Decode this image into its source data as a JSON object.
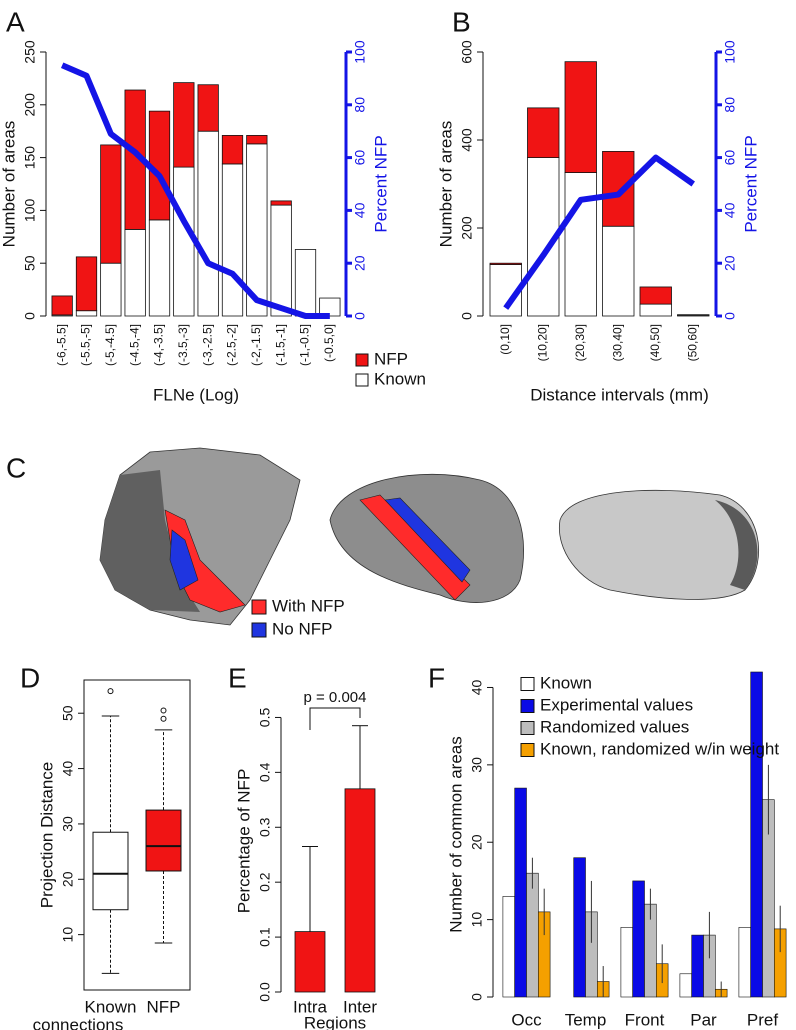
{
  "chart_data": [
    {
      "panel": "A",
      "type": "stack_line",
      "xlabel": "FLNe (Log)",
      "ylabel": "Number of areas",
      "y2label": "Percent NFP",
      "categories": [
        "(-6,-5.5]",
        "(-5.5,-5]",
        "(-5,-4.5]",
        "(-4.5,-4]",
        "(-4,-3.5]",
        "(-3.5,-3]",
        "(-3,-2.5]",
        "(-2.5,-2]",
        "(-2,-1.5]",
        "(-1.5,-1]",
        "(-1,-0.5]",
        "(-0.5,0]"
      ],
      "series": [
        {
          "name": "Known",
          "color": "#ffffff",
          "values": [
            1,
            5,
            50,
            82,
            91,
            141,
            175,
            144,
            163,
            105,
            63,
            17
          ]
        },
        {
          "name": "NFP",
          "color": "#f01414",
          "values": [
            18,
            51,
            112,
            132,
            103,
            80,
            44,
            27,
            8,
            4,
            0,
            0
          ]
        },
        {
          "name": "Percent NFP",
          "color": "#1414e6",
          "axis": "y2",
          "values": [
            95,
            91,
            69,
            62,
            53,
            36,
            20,
            16,
            6,
            3,
            0,
            0
          ]
        }
      ],
      "ylim": [
        0,
        250
      ],
      "yticks": [
        0,
        50,
        100,
        150,
        200,
        250
      ],
      "y2lim": [
        0,
        100
      ],
      "y2ticks": [
        0,
        20,
        40,
        60,
        80,
        100
      ],
      "legend": "below-right"
    },
    {
      "panel": "B",
      "type": "stack_line",
      "xlabel": "Distance intervals (mm)",
      "ylabel": "Number of areas",
      "y2label": "Percent NFP",
      "categories": [
        "(0,10]",
        "(10,20]",
        "(20,30]",
        "(30,40]",
        "(40,50]",
        "(50,60]"
      ],
      "series": [
        {
          "name": "Known",
          "color": "#ffffff",
          "values": [
            117,
            360,
            326,
            204,
            27,
            2
          ]
        },
        {
          "name": "NFP",
          "color": "#f01414",
          "values": [
            3,
            113,
            252,
            170,
            39,
            1
          ]
        },
        {
          "name": "Percent NFP",
          "color": "#1414e6",
          "axis": "y2",
          "values": [
            3,
            23,
            44,
            46,
            60,
            50
          ]
        }
      ],
      "ylim": [
        0,
        600
      ],
      "yticks": [
        0,
        200,
        400,
        600
      ],
      "y2lim": [
        0,
        100
      ],
      "y2ticks": [
        0,
        20,
        40,
        60,
        80,
        100
      ]
    },
    {
      "panel": "C",
      "type": "image",
      "series": [
        {
          "name": "With NFP",
          "color": "#ff2b2b"
        },
        {
          "name": "No NFP",
          "color": "#1f35e0"
        }
      ]
    },
    {
      "panel": "D",
      "type": "box",
      "ylabel": "Projection Distance",
      "xlabel": "connections",
      "categories": [
        "Known",
        "NFP"
      ],
      "colors": [
        "#ffffff",
        "#f01414"
      ],
      "boxes": [
        {
          "min": 3,
          "q1": 14.5,
          "median": 21,
          "q3": 28.5,
          "max": 49.5,
          "outliers": [
            54
          ]
        },
        {
          "min": 8.5,
          "q1": 21.5,
          "median": 26,
          "q3": 32.5,
          "max": 47,
          "outliers": [
            49,
            50.5
          ]
        }
      ],
      "ylim": [
        0,
        56
      ],
      "yticks": [
        10,
        20,
        30,
        40,
        50
      ]
    },
    {
      "panel": "E",
      "type": "bar_error",
      "ylabel": "Percentage of NFP",
      "xlabel": "Regions",
      "categories": [
        "Intra",
        "Inter"
      ],
      "values": [
        0.11,
        0.37
      ],
      "errors": [
        0.155,
        0.115
      ],
      "color": "#f01414",
      "annotation": "p = 0.004",
      "ylim": [
        0,
        0.55
      ],
      "yticks": [
        {
          "value": 0,
          "label": "0.0"
        },
        0.1,
        0.2,
        0.3,
        0.4,
        0.5
      ]
    },
    {
      "panel": "F",
      "type": "grouped_bar",
      "ylabel": "Number of common areas",
      "categories": [
        "Occ",
        "Temp",
        "Front",
        "Par",
        "Pref"
      ],
      "series": [
        {
          "name": "Known",
          "color": "#ffffff",
          "values": [
            13,
            0,
            9,
            3,
            9
          ]
        },
        {
          "name": "Experimental values",
          "color": "#0a0ae6",
          "values": [
            27,
            18,
            15,
            8,
            42
          ]
        },
        {
          "name": "Randomized values",
          "color": "#bdbdbd",
          "values": [
            16,
            11,
            12,
            8,
            25.5
          ],
          "errors": [
            2,
            4,
            2,
            3,
            4.5
          ]
        },
        {
          "name": "Known, randomized w/in weight",
          "color": "#f5a000",
          "values": [
            11,
            2,
            4.3,
            1,
            8.8
          ],
          "errors": [
            3,
            2,
            2.5,
            1,
            3
          ]
        }
      ],
      "ylim": [
        0,
        42
      ],
      "yticks": [
        0,
        10,
        20,
        30,
        40
      ]
    }
  ]
}
